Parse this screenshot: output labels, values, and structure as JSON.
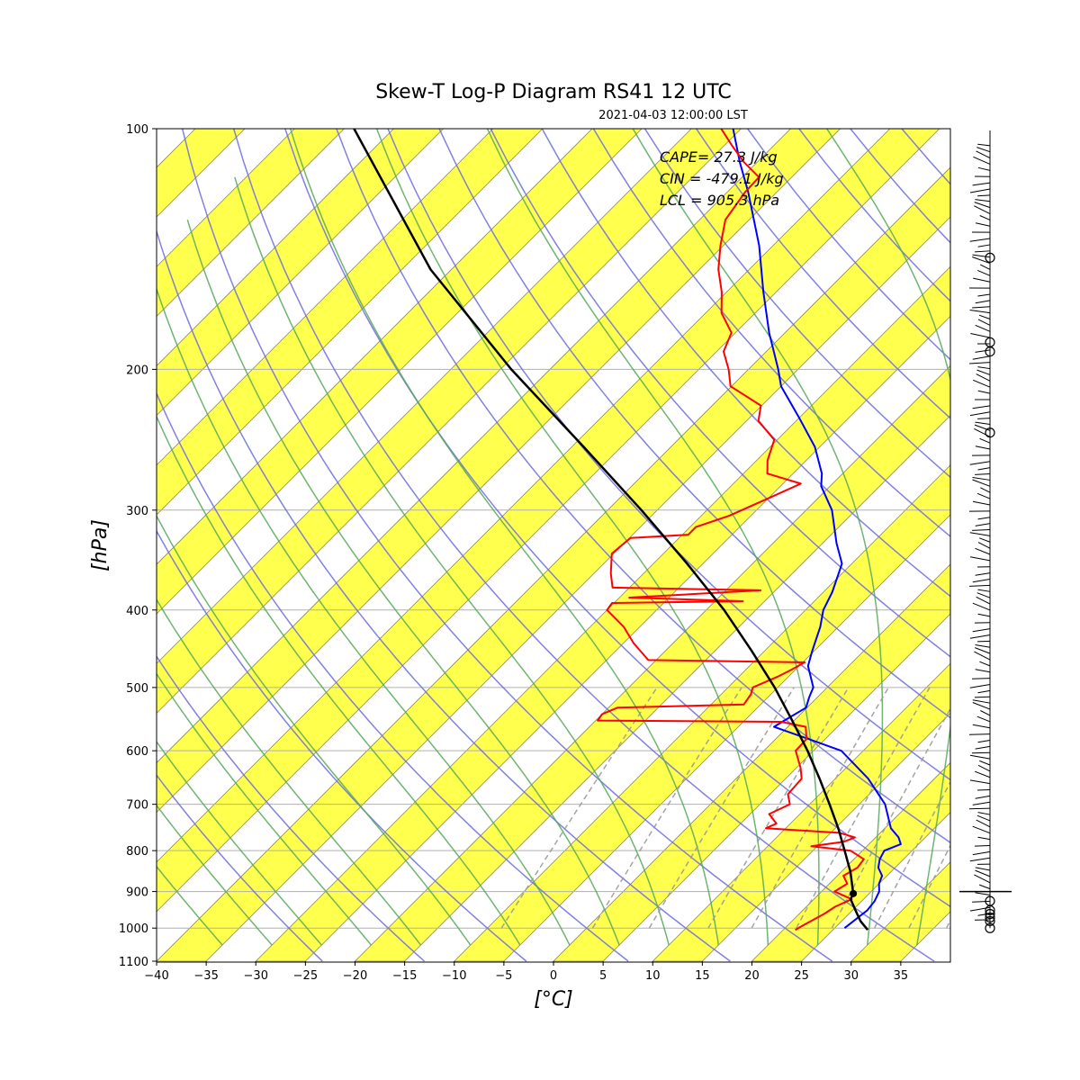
{
  "chart_data": {
    "type": "line",
    "title": "Skew-T Log-P Diagram RS41 12 UTC",
    "subtitle": "2021-04-03 12:00:00 LST",
    "xlabel": "[°C]",
    "ylabel": "[hPa]",
    "xlim": [
      -40,
      40
    ],
    "ylim": [
      1100,
      100
    ],
    "y_scale": "log",
    "x_ticks": [
      "−40",
      "−35",
      "−30",
      "−25",
      "−20",
      "−15",
      "−10",
      "−5",
      "0",
      "5",
      "10",
      "15",
      "20",
      "25",
      "30",
      "35"
    ],
    "y_ticks": [
      "100",
      "200",
      "300",
      "400",
      "500",
      "600",
      "700",
      "800",
      "900",
      "1000",
      "1100"
    ],
    "annotations": [
      "CAPE= 27.3 J/kg",
      "CIN = -479.1 J/kg",
      "LCL = 905.3 hPa"
    ],
    "lcl_point": {
      "p": 905.3,
      "t": 23.4
    },
    "series": [
      {
        "color": "#0000ff",
        "points": [
          [
            1000,
            26.0
          ],
          [
            950,
            26.5
          ],
          [
            925,
            26.3
          ],
          [
            900,
            25.8
          ],
          [
            880,
            25.0
          ],
          [
            860,
            24.5
          ],
          [
            840,
            23.3
          ],
          [
            820,
            22.6
          ],
          [
            800,
            22.2
          ],
          [
            785,
            23.2
          ],
          [
            770,
            22.3
          ],
          [
            750,
            20.6
          ],
          [
            700,
            17.6
          ],
          [
            650,
            13.3
          ],
          [
            600,
            7.8
          ],
          [
            580,
            3.3
          ],
          [
            560,
            -1.4
          ],
          [
            550,
            -1.0
          ],
          [
            530,
            -0.1
          ],
          [
            515,
            -0.8
          ],
          [
            500,
            -1.4
          ],
          [
            470,
            -4.1
          ],
          [
            450,
            -5.2
          ],
          [
            420,
            -6.8
          ],
          [
            400,
            -8.2
          ],
          [
            380,
            -9.1
          ],
          [
            350,
            -11.0
          ],
          [
            330,
            -13.6
          ],
          [
            300,
            -17.4
          ],
          [
            280,
            -20.9
          ],
          [
            270,
            -22.1
          ],
          [
            250,
            -25.5
          ],
          [
            230,
            -30.0
          ],
          [
            210,
            -35.0
          ],
          [
            200,
            -37.0
          ],
          [
            180,
            -41.6
          ],
          [
            160,
            -46.3
          ],
          [
            140,
            -51.4
          ],
          [
            120,
            -57.9
          ],
          [
            110,
            -61.8
          ],
          [
            100,
            -65.8
          ]
        ]
      },
      {
        "color": "#ff0000",
        "points": [
          [
            1005,
            21.2
          ],
          [
            990,
            21.6
          ],
          [
            960,
            22.5
          ],
          [
            940,
            22.9
          ],
          [
            920,
            23.8
          ],
          [
            900,
            21.3
          ],
          [
            880,
            21.8
          ],
          [
            860,
            20.6
          ],
          [
            840,
            21.2
          ],
          [
            820,
            21.0
          ],
          [
            800,
            18.8
          ],
          [
            790,
            14.4
          ],
          [
            780,
            17.2
          ],
          [
            770,
            17.9
          ],
          [
            760,
            15.9
          ],
          [
            750,
            8.0
          ],
          [
            740,
            8.6
          ],
          [
            720,
            6.9
          ],
          [
            700,
            8.0
          ],
          [
            680,
            6.8
          ],
          [
            650,
            6.6
          ],
          [
            630,
            5.4
          ],
          [
            600,
            3.2
          ],
          [
            580,
            3.1
          ],
          [
            560,
            1.8
          ],
          [
            552,
            -1.2
          ],
          [
            550,
            -19.8
          ],
          [
            540,
            -20.0
          ],
          [
            530,
            -19.1
          ],
          [
            525,
            -6.7
          ],
          [
            510,
            -7.0
          ],
          [
            500,
            -7.5
          ],
          [
            485,
            -6.1
          ],
          [
            475,
            -5.4
          ],
          [
            465,
            -4.8
          ],
          [
            462,
            -20.8
          ],
          [
            440,
            -24.0
          ],
          [
            420,
            -26.6
          ],
          [
            400,
            -30.0
          ],
          [
            392,
            -30.2
          ],
          [
            390,
            -17.2
          ],
          [
            386,
            -29.0
          ],
          [
            378,
            -16.5
          ],
          [
            375,
            -31.7
          ],
          [
            360,
            -33.3
          ],
          [
            340,
            -35.2
          ],
          [
            325,
            -34.9
          ],
          [
            322,
            -29.4
          ],
          [
            315,
            -29.4
          ],
          [
            305,
            -27.2
          ],
          [
            290,
            -25.0
          ],
          [
            278,
            -23.2
          ],
          [
            270,
            -27.6
          ],
          [
            260,
            -28.9
          ],
          [
            245,
            -30.3
          ],
          [
            232,
            -33.8
          ],
          [
            222,
            -35.1
          ],
          [
            210,
            -40.1
          ],
          [
            200,
            -42.0
          ],
          [
            190,
            -44.3
          ],
          [
            180,
            -45.4
          ],
          [
            170,
            -48.4
          ],
          [
            160,
            -50.5
          ],
          [
            150,
            -53.1
          ],
          [
            140,
            -55.3
          ],
          [
            130,
            -57.4
          ],
          [
            120,
            -58.2
          ],
          [
            115,
            -58.3
          ],
          [
            110,
            -61.4
          ],
          [
            105,
            -64.2
          ],
          [
            100,
            -67.0
          ]
        ]
      },
      {
        "color": "#000000",
        "points": [
          [
            1005,
            28.5
          ],
          [
            980,
            26.9
          ],
          [
            950,
            25.3
          ],
          [
            920,
            23.7
          ],
          [
            905.3,
            23.4
          ],
          [
            850,
            20.9
          ],
          [
            800,
            18.2
          ],
          [
            750,
            15.3
          ],
          [
            700,
            12.0
          ],
          [
            650,
            8.4
          ],
          [
            600,
            4.4
          ],
          [
            550,
            -0.2
          ],
          [
            500,
            -5.3
          ],
          [
            450,
            -11.3
          ],
          [
            400,
            -18.2
          ],
          [
            350,
            -26.6
          ],
          [
            300,
            -36.6
          ],
          [
            250,
            -48.8
          ],
          [
            200,
            -63.9
          ],
          [
            150,
            -82.1
          ],
          [
            100,
            -104.0
          ]
        ]
      }
    ]
  },
  "colors": {
    "temperature": "#0000ff",
    "dewpoint": "#ff0000",
    "parcel": "#000000",
    "isotherm_band": "#ffff4d",
    "dry_adiabat": "#6b6bdf",
    "moist_adiabat": "#56a856",
    "mixing_ratio": "#999999"
  },
  "wind_barbs_present": true
}
